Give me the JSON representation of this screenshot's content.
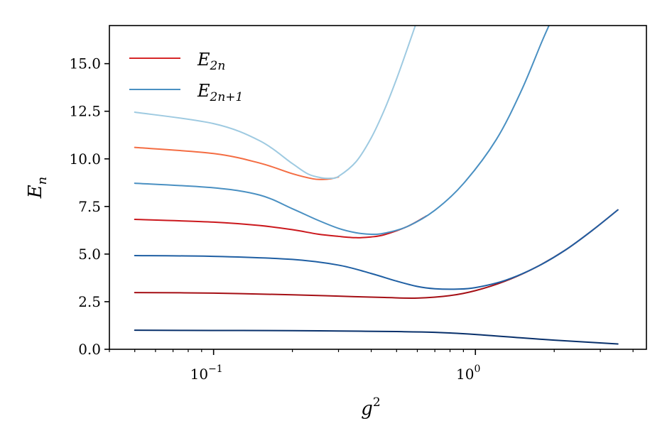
{
  "chart_data": {
    "type": "line",
    "xlabel": "g",
    "xlabel_sup": "2",
    "ylabel": "E",
    "ylabel_sub": "n",
    "xscale": "log",
    "xlim": [
      0.04,
      4.5
    ],
    "ylim": [
      0,
      17
    ],
    "grid": false,
    "legend_position": "top-left",
    "x_ticks": [
      {
        "value": 0.1,
        "base": "10",
        "exp": "−1"
      },
      {
        "value": 1,
        "base": "10",
        "exp": "0"
      }
    ],
    "y_ticks": [
      {
        "value": 0,
        "label": "0.0"
      },
      {
        "value": 2.5,
        "label": "2.5"
      },
      {
        "value": 5,
        "label": "5.0"
      },
      {
        "value": 7.5,
        "label": "7.5"
      },
      {
        "value": 10,
        "label": "10.0"
      },
      {
        "value": 12.5,
        "label": "12.5"
      },
      {
        "value": 15,
        "label": "15.0"
      }
    ],
    "legend": [
      {
        "base": "E",
        "sub": "2n",
        "color": "#d62728"
      },
      {
        "base": "E",
        "sub": "2n+1",
        "color": "#4a90c2"
      }
    ],
    "series": [
      {
        "color": "#08306b",
        "x": [
          0.05,
          0.1,
          0.2,
          0.3,
          0.5,
          0.7,
          1.0,
          1.5,
          2.0,
          3.5
        ],
        "y": [
          1.0,
          0.99,
          0.98,
          0.96,
          0.93,
          0.89,
          0.78,
          0.6,
          0.48,
          0.28
        ]
      },
      {
        "color": "#a50f15",
        "x": [
          0.05,
          0.1,
          0.2,
          0.3,
          0.45,
          0.6,
          0.8,
          1.0,
          1.3,
          1.7,
          2.2,
          2.8,
          3.5
        ],
        "y": [
          2.98,
          2.95,
          2.86,
          2.79,
          2.72,
          2.69,
          2.82,
          3.08,
          3.58,
          4.3,
          5.2,
          6.25,
          7.32
        ]
      },
      {
        "color": "#1f5fa3",
        "x": [
          0.05,
          0.1,
          0.2,
          0.3,
          0.4,
          0.5,
          0.6,
          0.7,
          0.85,
          1.0,
          1.3,
          1.7,
          2.2,
          2.8,
          3.5
        ],
        "y": [
          4.92,
          4.88,
          4.72,
          4.42,
          3.98,
          3.58,
          3.3,
          3.18,
          3.16,
          3.24,
          3.62,
          4.3,
          5.2,
          6.25,
          7.32
        ]
      },
      {
        "color": "#cb181d",
        "x": [
          0.05,
          0.1,
          0.15,
          0.2,
          0.25,
          0.3,
          0.35,
          0.4,
          0.45,
          0.55,
          0.65
        ],
        "y": [
          6.82,
          6.68,
          6.5,
          6.28,
          6.05,
          5.93,
          5.86,
          5.9,
          6.02,
          6.45,
          7.0
        ]
      },
      {
        "color": "#4a90c2",
        "x": [
          0.05,
          0.1,
          0.15,
          0.2,
          0.25,
          0.3,
          0.35,
          0.4,
          0.45,
          0.55,
          0.7,
          0.9,
          1.2,
          1.5,
          1.8,
          2.0
        ],
        "y": [
          8.72,
          8.48,
          8.1,
          7.38,
          6.78,
          6.35,
          6.12,
          6.04,
          6.1,
          6.45,
          7.3,
          8.7,
          11.0,
          13.6,
          16.2,
          17.6
        ]
      },
      {
        "color": "#f46d43",
        "x": [
          0.05,
          0.1,
          0.15,
          0.2,
          0.24,
          0.26,
          0.28,
          0.3
        ],
        "y": [
          10.6,
          10.28,
          9.78,
          9.22,
          8.95,
          8.92,
          8.95,
          9.05
        ]
      },
      {
        "color": "#9ecae1",
        "x": [
          0.05,
          0.1,
          0.15,
          0.2,
          0.23,
          0.26,
          0.28,
          0.3,
          0.35,
          0.4,
          0.45,
          0.5,
          0.55,
          0.6,
          0.65
        ],
        "y": [
          12.45,
          11.85,
          10.95,
          9.75,
          9.2,
          9.0,
          8.98,
          9.08,
          9.85,
          11.1,
          12.6,
          14.2,
          15.8,
          17.3,
          18.6
        ]
      }
    ]
  }
}
